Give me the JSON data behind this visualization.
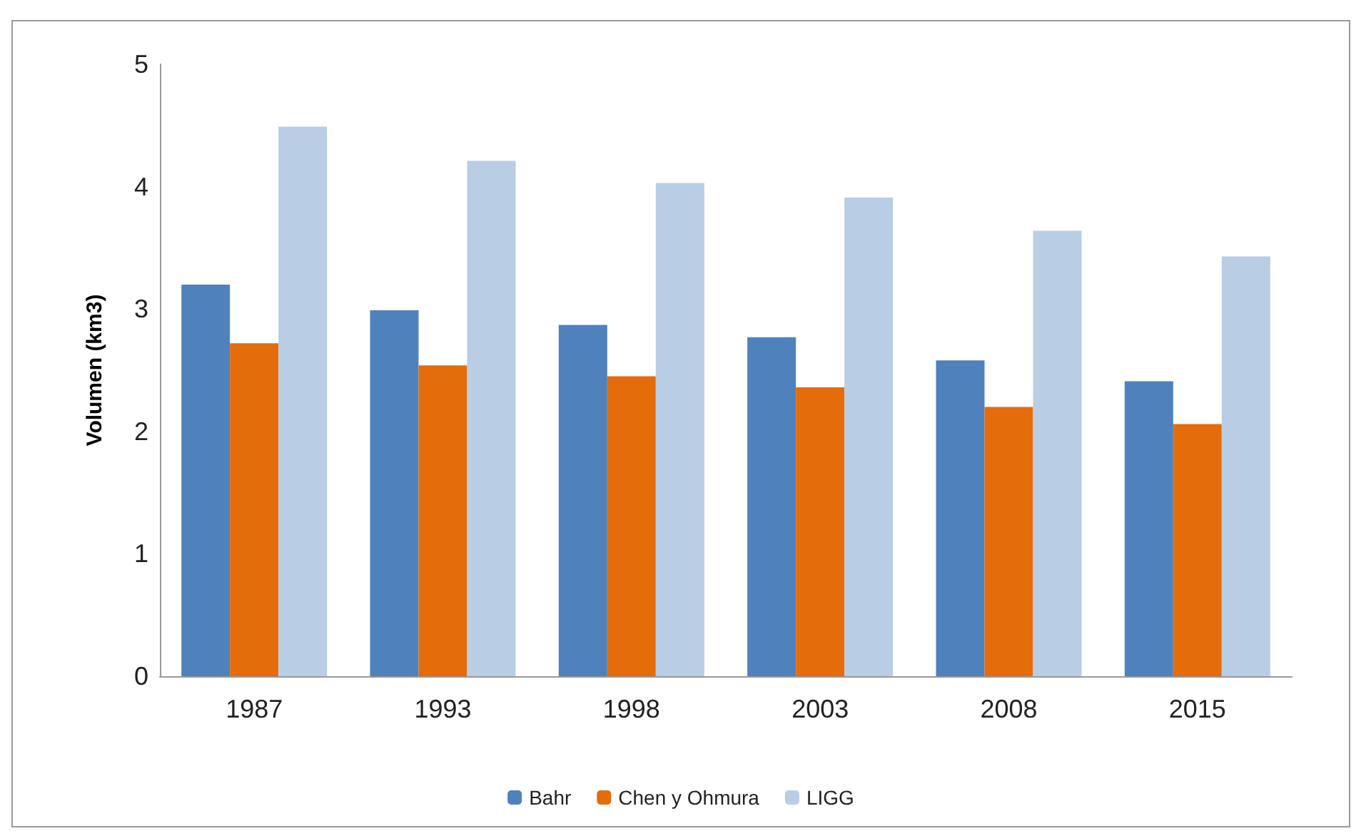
{
  "chart_data": {
    "type": "bar",
    "ylabel": "Volumen (km3)",
    "categories": [
      "1987",
      "1993",
      "1998",
      "2003",
      "2008",
      "2015"
    ],
    "series": [
      {
        "name": "Bahr",
        "color": "#4f81bd",
        "values": [
          3.2,
          2.99,
          2.87,
          2.77,
          2.58,
          2.41
        ]
      },
      {
        "name": "Chen y Ohmura",
        "color": "#e46c0a",
        "values": [
          2.72,
          2.54,
          2.45,
          2.36,
          2.2,
          2.06
        ]
      },
      {
        "name": "LIGG",
        "color": "#b9cde5",
        "values": [
          4.49,
          4.21,
          4.03,
          3.91,
          3.64,
          3.43
        ]
      }
    ],
    "ylim": [
      0,
      5
    ],
    "yticks": [
      0,
      1,
      2,
      3,
      4,
      5
    ],
    "grid": false,
    "legend": "bottom"
  }
}
